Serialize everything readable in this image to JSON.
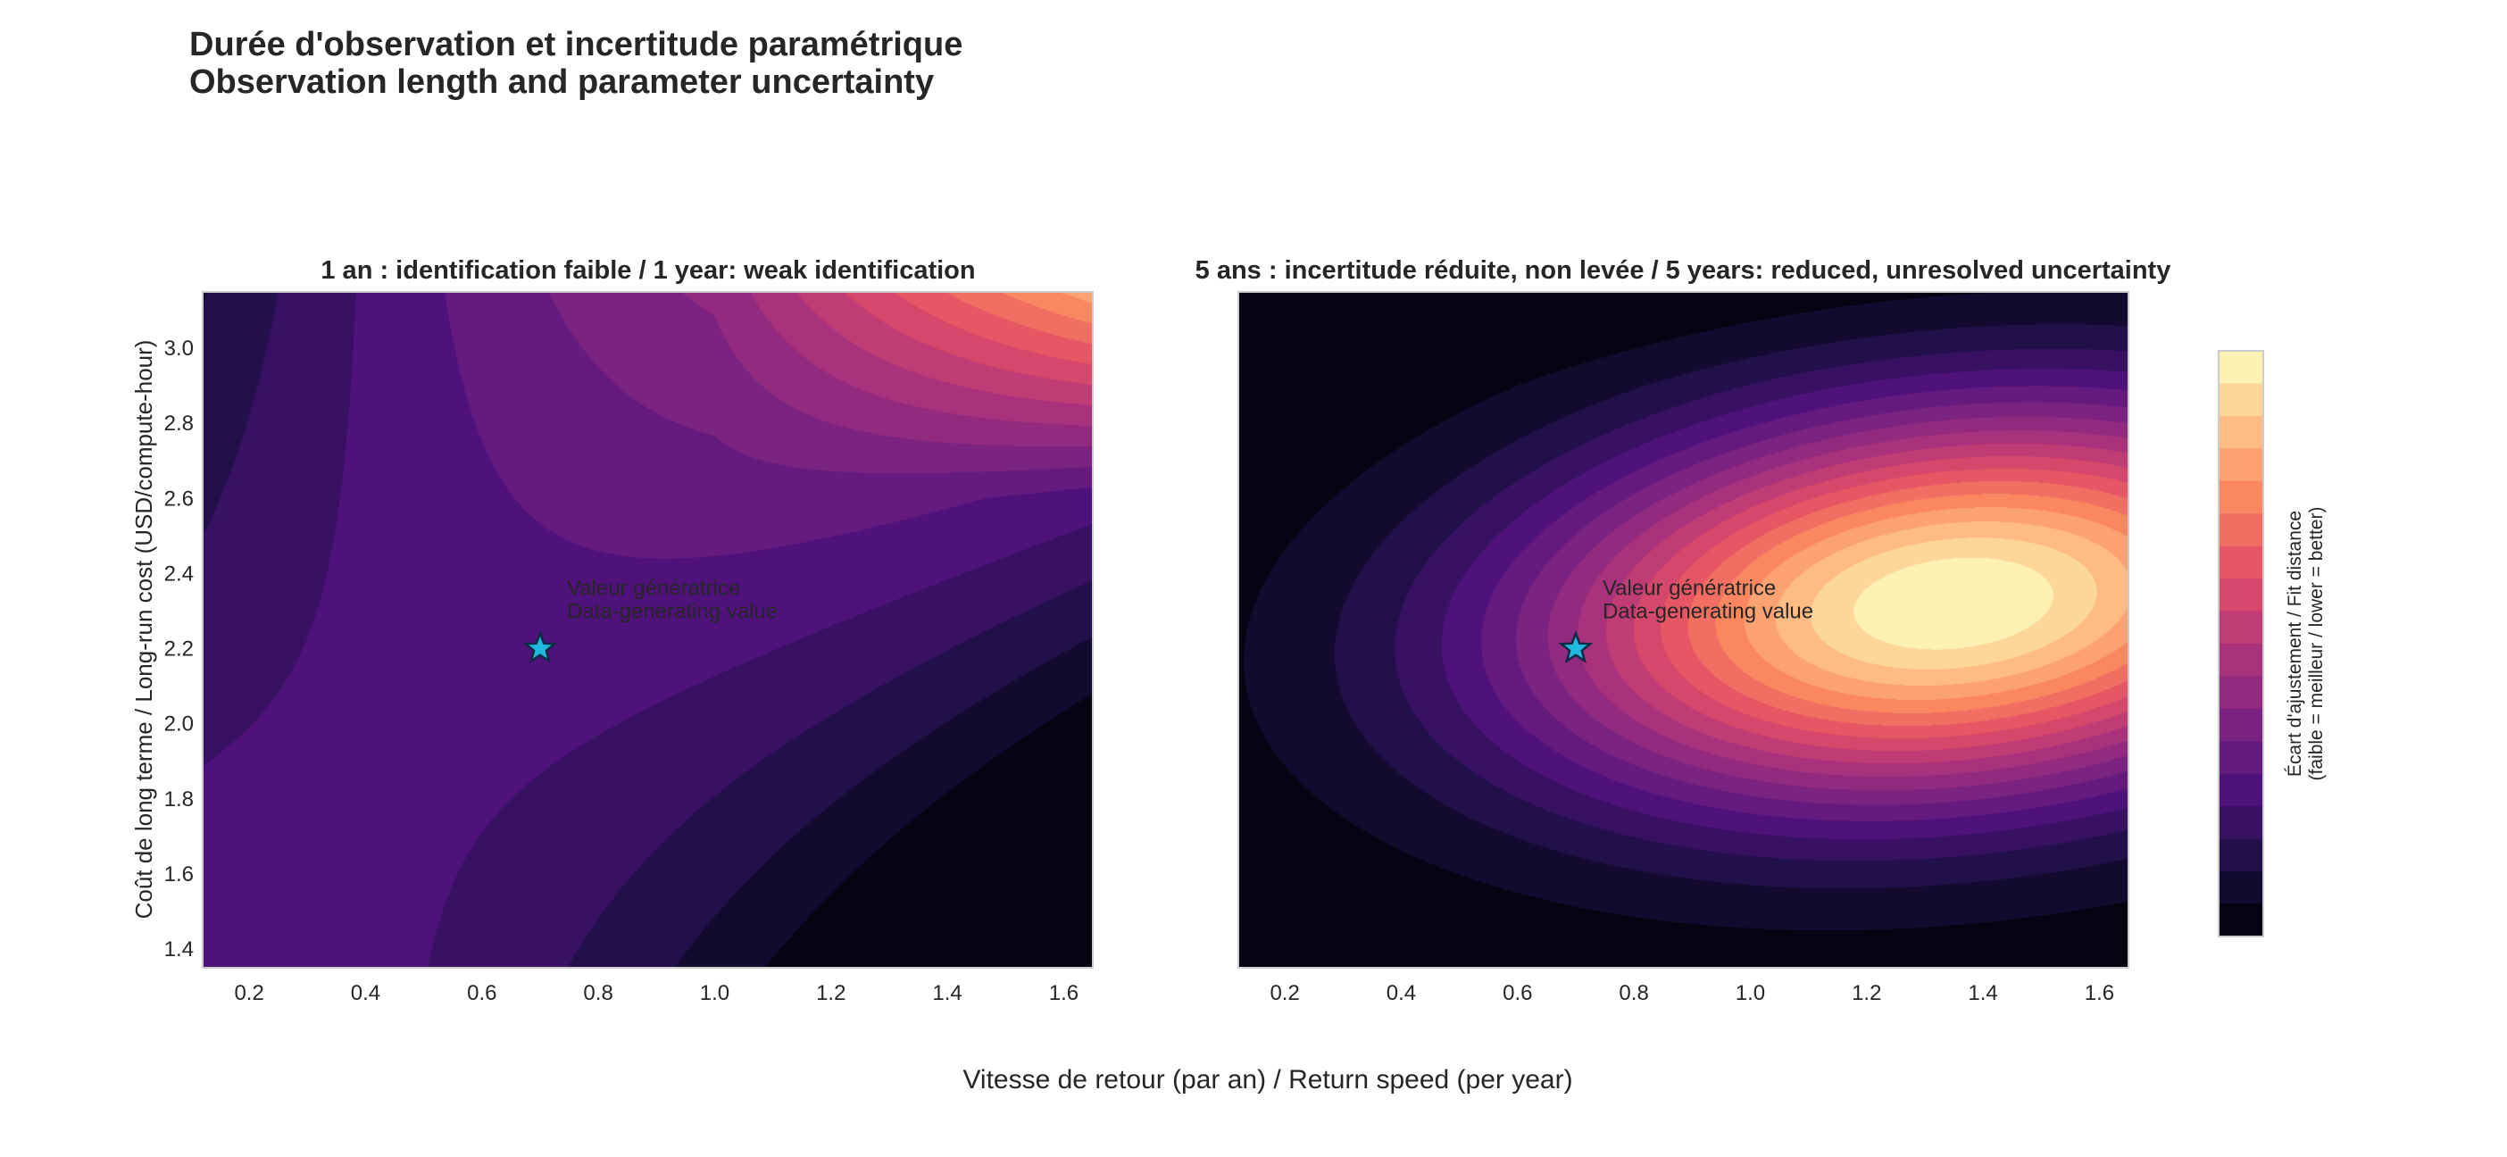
{
  "title_fr": "Durée d'observation et incertitude paramétrique",
  "title_en": "Observation length and parameter uncertainty",
  "shared_xlabel": "Vitesse de retour (par an) / Return speed (per year)",
  "colors": {
    "star_fill": "#20b8dc",
    "star_edge": "#0b2a44",
    "axes_edge": "#cccccc",
    "colormap": "magma"
  },
  "chart_data": [
    {
      "type": "contour",
      "title": "1 an : identification faible / 1 year: weak identification",
      "xlabel": "",
      "ylabel": "Coût de long terme / Long-run cost (USD/compute-hour)",
      "xlim": [
        0.12,
        1.65
      ],
      "ylim": [
        1.35,
        3.15
      ],
      "xticks": [
        "0.2",
        "0.4",
        "0.6",
        "0.8",
        "1.0",
        "1.2",
        "1.4",
        "1.6"
      ],
      "yticks": [
        "1.4",
        "1.6",
        "1.8",
        "2.0",
        "2.2",
        "2.4",
        "2.6",
        "2.8",
        "3.0"
      ],
      "marker": {
        "x": 0.7,
        "y": 2.2,
        "label_fr": "Valeur génératrice",
        "label_en": "Data-generating value"
      },
      "levels": 18,
      "level_min": 0.4,
      "level_max": 1.0,
      "note": "weakly identified: long flat valley, worst fit in the upper-right corner"
    },
    {
      "type": "contour",
      "title": "5 ans : incertitude réduite, non levée / 5 years: reduced, unresolved uncertainty",
      "xlabel": "",
      "ylabel": "",
      "xlim": [
        0.12,
        1.65
      ],
      "ylim": [
        1.35,
        3.15
      ],
      "xticks": [
        "0.2",
        "0.4",
        "0.6",
        "0.8",
        "1.0",
        "1.2",
        "1.4",
        "1.6"
      ],
      "yticks": [],
      "marker": {
        "x": 0.7,
        "y": 2.2,
        "label_fr": "Valeur génératrice",
        "label_en": "Data-generating value"
      },
      "levels": 18,
      "level_min": 0.0,
      "level_max": 1.0,
      "note": "elliptical basin centred near (1.35, 2.32); lowest fit distance in the yellow core"
    }
  ],
  "colorbar": {
    "label_line1": "Écart d'ajustement / Fit distance",
    "label_line2": "(faible = meilleur / lower = better)",
    "levels": 18,
    "orientation": "vertical"
  }
}
